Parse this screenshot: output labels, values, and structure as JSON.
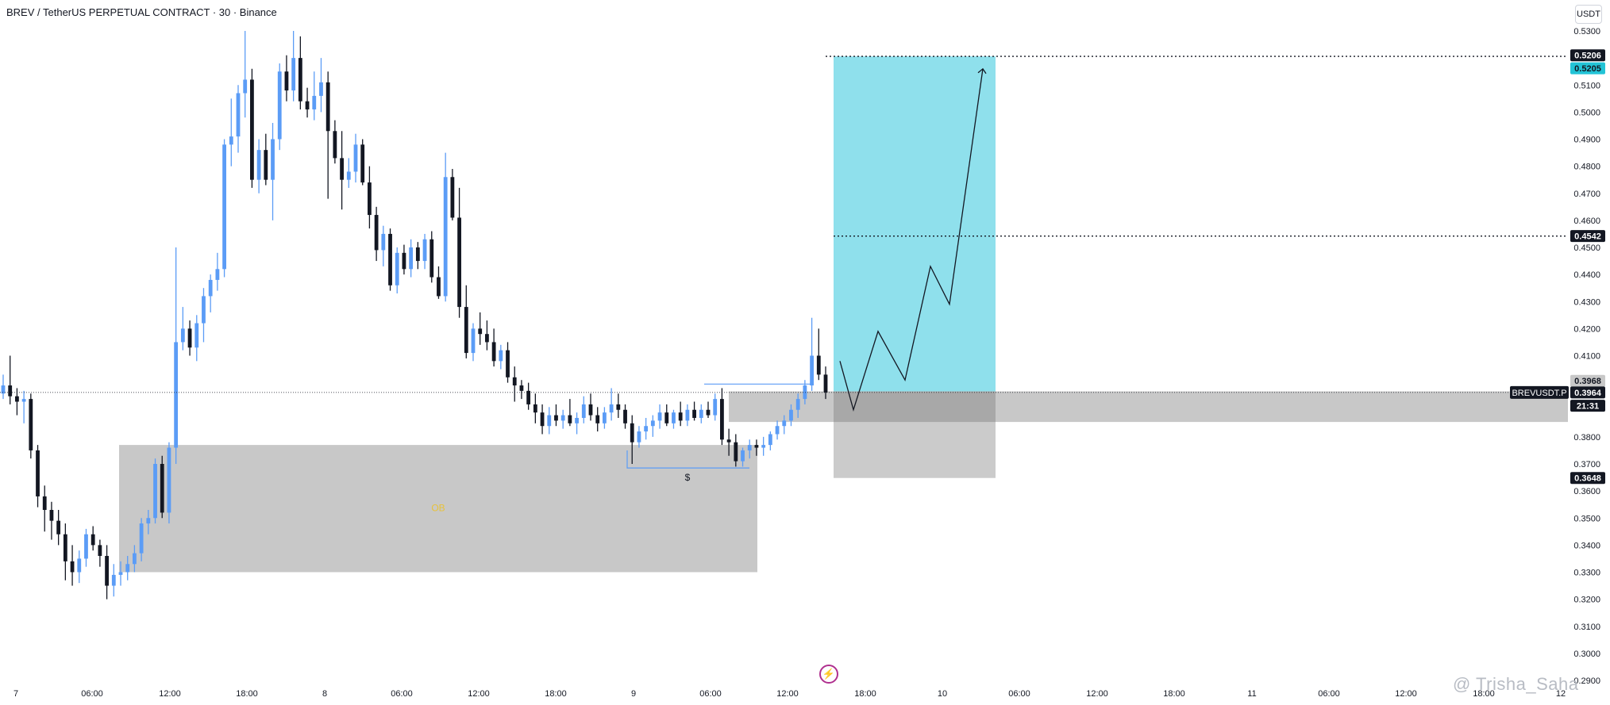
{
  "header": {
    "title": "BREV / TetherUS PERPETUAL CONTRACT · 30 · Binance",
    "unit": "USDT"
  },
  "watermark": "@ Trisha_Saha",
  "colors": {
    "up": "#5b9cf6",
    "down": "#131722",
    "zone": "#c8c8c8",
    "target": "#8fe0ec",
    "label_dark": "#131722",
    "label_cyan": "#22c3d6"
  },
  "chart_data": {
    "type": "candlestick",
    "symbol": "BREVUSDT.P",
    "interval": "30",
    "ylim": [
      0.29,
      0.53
    ],
    "y_ticks": [
      "0.5300",
      "0.5100",
      "0.5000",
      "0.4900",
      "0.4800",
      "0.4700",
      "0.4600",
      "0.4500",
      "0.4400",
      "0.4300",
      "0.4200",
      "0.4100",
      "0.3800",
      "0.3700",
      "0.3600",
      "0.3500",
      "0.3400",
      "0.3300",
      "0.3200",
      "0.3100",
      "0.3000",
      "0.2900"
    ],
    "x_ticks": [
      "7",
      "06:00",
      "12:00",
      "18:00",
      "8",
      "06:00",
      "12:00",
      "18:00",
      "9",
      "06:00",
      "12:00",
      "18:00",
      "10",
      "06:00",
      "12:00",
      "18:00",
      "11",
      "06:00",
      "12:00",
      "18:00",
      "12"
    ],
    "price_labels": {
      "target_high": "0.5206",
      "target_cyan": "0.5205",
      "mid_target": "0.4542",
      "range_top": "0.3968",
      "current": "0.3964",
      "symbol": "BREVUSDT.P",
      "countdown": "21:31",
      "stop": "0.3648"
    },
    "annotations": {
      "ob_label": "OB",
      "liquidity_label": "$"
    },
    "candles_ohlc": [
      [
        0.396,
        0.403,
        0.394,
        0.399
      ],
      [
        0.399,
        0.41,
        0.392,
        0.395
      ],
      [
        0.395,
        0.398,
        0.388,
        0.393
      ],
      [
        0.393,
        0.397,
        0.385,
        0.394
      ],
      [
        0.394,
        0.396,
        0.372,
        0.375
      ],
      [
        0.375,
        0.377,
        0.354,
        0.358
      ],
      [
        0.358,
        0.362,
        0.345,
        0.353
      ],
      [
        0.353,
        0.356,
        0.342,
        0.349
      ],
      [
        0.349,
        0.353,
        0.34,
        0.344
      ],
      [
        0.344,
        0.348,
        0.327,
        0.334
      ],
      [
        0.334,
        0.34,
        0.325,
        0.33
      ],
      [
        0.33,
        0.338,
        0.326,
        0.335
      ],
      [
        0.335,
        0.346,
        0.332,
        0.344
      ],
      [
        0.344,
        0.347,
        0.338,
        0.34
      ],
      [
        0.34,
        0.342,
        0.332,
        0.336
      ],
      [
        0.336,
        0.34,
        0.32,
        0.325
      ],
      [
        0.325,
        0.333,
        0.321,
        0.329
      ],
      [
        0.329,
        0.334,
        0.325,
        0.33
      ],
      [
        0.33,
        0.336,
        0.327,
        0.333
      ],
      [
        0.333,
        0.34,
        0.33,
        0.337
      ],
      [
        0.337,
        0.35,
        0.334,
        0.348
      ],
      [
        0.348,
        0.353,
        0.344,
        0.35
      ],
      [
        0.35,
        0.372,
        0.348,
        0.37
      ],
      [
        0.37,
        0.373,
        0.35,
        0.352
      ],
      [
        0.352,
        0.378,
        0.348,
        0.376
      ],
      [
        0.376,
        0.45,
        0.37,
        0.415
      ],
      [
        0.415,
        0.428,
        0.412,
        0.42
      ],
      [
        0.42,
        0.423,
        0.41,
        0.413
      ],
      [
        0.413,
        0.425,
        0.408,
        0.422
      ],
      [
        0.422,
        0.435,
        0.415,
        0.432
      ],
      [
        0.432,
        0.44,
        0.426,
        0.438
      ],
      [
        0.438,
        0.448,
        0.434,
        0.442
      ],
      [
        0.442,
        0.49,
        0.439,
        0.488
      ],
      [
        0.488,
        0.505,
        0.48,
        0.491
      ],
      [
        0.491,
        0.51,
        0.485,
        0.507
      ],
      [
        0.507,
        0.53,
        0.498,
        0.512
      ],
      [
        0.512,
        0.516,
        0.472,
        0.475
      ],
      [
        0.475,
        0.49,
        0.47,
        0.486
      ],
      [
        0.486,
        0.492,
        0.473,
        0.475
      ],
      [
        0.475,
        0.496,
        0.46,
        0.49
      ],
      [
        0.49,
        0.518,
        0.486,
        0.515
      ],
      [
        0.515,
        0.521,
        0.504,
        0.508
      ],
      [
        0.508,
        0.53,
        0.504,
        0.52
      ],
      [
        0.52,
        0.528,
        0.501,
        0.504
      ],
      [
        0.504,
        0.509,
        0.498,
        0.501
      ],
      [
        0.501,
        0.515,
        0.497,
        0.506
      ],
      [
        0.506,
        0.52,
        0.5,
        0.511
      ],
      [
        0.511,
        0.515,
        0.468,
        0.493
      ],
      [
        0.493,
        0.497,
        0.481,
        0.483
      ],
      [
        0.483,
        0.493,
        0.464,
        0.475
      ],
      [
        0.475,
        0.483,
        0.472,
        0.478
      ],
      [
        0.478,
        0.492,
        0.474,
        0.488
      ],
      [
        0.488,
        0.49,
        0.473,
        0.474
      ],
      [
        0.474,
        0.48,
        0.457,
        0.462
      ],
      [
        0.462,
        0.465,
        0.445,
        0.449
      ],
      [
        0.449,
        0.458,
        0.443,
        0.455
      ],
      [
        0.455,
        0.457,
        0.434,
        0.436
      ],
      [
        0.436,
        0.45,
        0.433,
        0.448
      ],
      [
        0.448,
        0.451,
        0.44,
        0.442
      ],
      [
        0.442,
        0.453,
        0.439,
        0.45
      ],
      [
        0.45,
        0.452,
        0.442,
        0.445
      ],
      [
        0.445,
        0.455,
        0.442,
        0.453
      ],
      [
        0.453,
        0.456,
        0.437,
        0.439
      ],
      [
        0.439,
        0.443,
        0.431,
        0.432
      ],
      [
        0.432,
        0.485,
        0.43,
        0.476
      ],
      [
        0.476,
        0.479,
        0.46,
        0.461
      ],
      [
        0.461,
        0.472,
        0.424,
        0.428
      ],
      [
        0.428,
        0.436,
        0.409,
        0.411
      ],
      [
        0.411,
        0.422,
        0.408,
        0.42
      ],
      [
        0.42,
        0.426,
        0.414,
        0.418
      ],
      [
        0.418,
        0.423,
        0.412,
        0.415
      ],
      [
        0.415,
        0.42,
        0.406,
        0.408
      ],
      [
        0.408,
        0.414,
        0.405,
        0.412
      ],
      [
        0.412,
        0.415,
        0.4,
        0.402
      ],
      [
        0.402,
        0.406,
        0.393,
        0.399
      ],
      [
        0.399,
        0.401,
        0.394,
        0.397
      ],
      [
        0.397,
        0.4,
        0.39,
        0.392
      ],
      [
        0.392,
        0.396,
        0.385,
        0.389
      ],
      [
        0.389,
        0.392,
        0.381,
        0.384
      ],
      [
        0.384,
        0.391,
        0.381,
        0.388
      ],
      [
        0.388,
        0.392,
        0.384,
        0.386
      ],
      [
        0.386,
        0.39,
        0.383,
        0.388
      ],
      [
        0.388,
        0.394,
        0.384,
        0.385
      ],
      [
        0.385,
        0.389,
        0.381,
        0.387
      ],
      [
        0.387,
        0.395,
        0.385,
        0.392
      ],
      [
        0.392,
        0.396,
        0.386,
        0.388
      ],
      [
        0.388,
        0.391,
        0.382,
        0.385
      ],
      [
        0.385,
        0.391,
        0.383,
        0.389
      ],
      [
        0.389,
        0.398,
        0.386,
        0.392
      ],
      [
        0.392,
        0.396,
        0.387,
        0.39
      ],
      [
        0.39,
        0.392,
        0.383,
        0.385
      ],
      [
        0.385,
        0.388,
        0.37,
        0.378
      ],
      [
        0.378,
        0.384,
        0.376,
        0.382
      ],
      [
        0.382,
        0.387,
        0.379,
        0.384
      ],
      [
        0.384,
        0.388,
        0.38,
        0.386
      ],
      [
        0.386,
        0.392,
        0.383,
        0.389
      ],
      [
        0.389,
        0.392,
        0.384,
        0.385
      ],
      [
        0.385,
        0.39,
        0.383,
        0.389
      ],
      [
        0.389,
        0.393,
        0.384,
        0.386
      ],
      [
        0.386,
        0.392,
        0.384,
        0.39
      ],
      [
        0.39,
        0.393,
        0.386,
        0.387
      ],
      [
        0.387,
        0.392,
        0.385,
        0.39
      ],
      [
        0.39,
        0.393,
        0.387,
        0.388
      ],
      [
        0.388,
        0.396,
        0.386,
        0.394
      ],
      [
        0.394,
        0.398,
        0.377,
        0.379
      ],
      [
        0.379,
        0.383,
        0.373,
        0.378
      ],
      [
        0.378,
        0.381,
        0.369,
        0.371
      ],
      [
        0.371,
        0.376,
        0.369,
        0.375
      ],
      [
        0.375,
        0.379,
        0.372,
        0.377
      ],
      [
        0.377,
        0.379,
        0.373,
        0.376
      ],
      [
        0.376,
        0.38,
        0.373,
        0.377
      ],
      [
        0.377,
        0.382,
        0.375,
        0.381
      ],
      [
        0.381,
        0.386,
        0.379,
        0.384
      ],
      [
        0.384,
        0.388,
        0.381,
        0.386
      ],
      [
        0.386,
        0.392,
        0.384,
        0.39
      ],
      [
        0.39,
        0.396,
        0.387,
        0.394
      ],
      [
        0.394,
        0.401,
        0.392,
        0.399
      ],
      [
        0.399,
        0.424,
        0.397,
        0.41
      ],
      [
        0.41,
        0.42,
        0.401,
        0.403
      ],
      [
        0.403,
        0.406,
        0.394,
        0.3964
      ]
    ]
  }
}
